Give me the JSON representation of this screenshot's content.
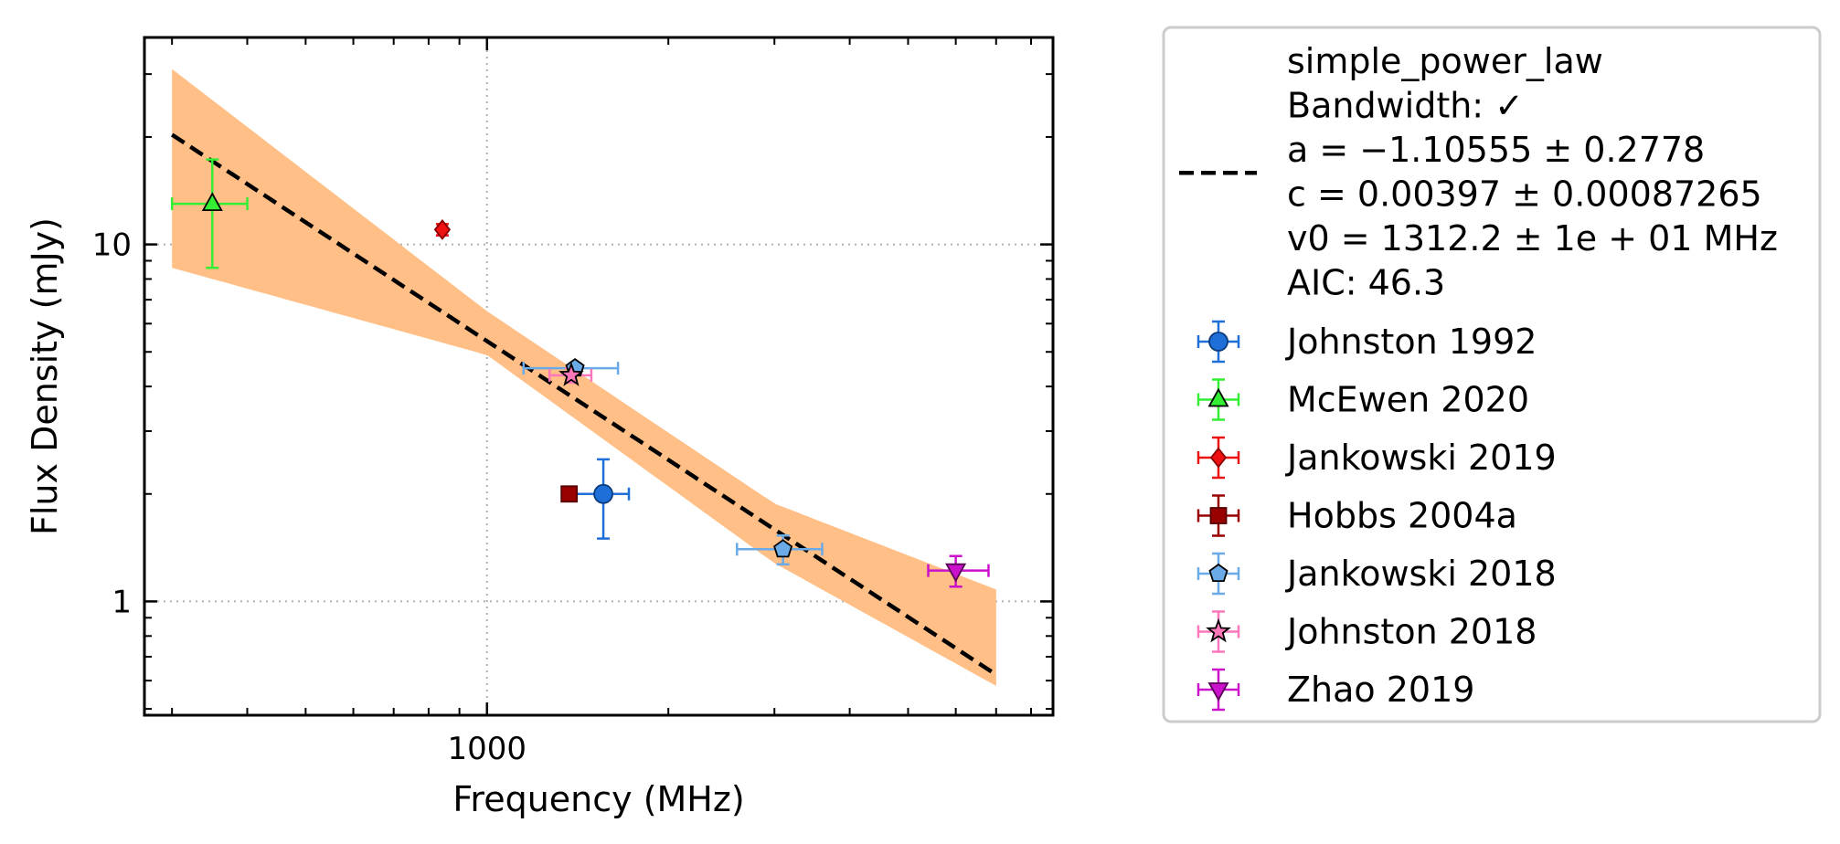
{
  "chart_data": {
    "type": "scatter",
    "xlabel": "Frequency (MHz)",
    "ylabel": "Flux Density (mJy)",
    "xscale": "log",
    "yscale": "log",
    "xlim": [
      270,
      8700
    ],
    "ylim": [
      0.48,
      38
    ],
    "x_major_ticks": [
      {
        "value": 1000,
        "label": "1000"
      }
    ],
    "y_major_ticks": [
      {
        "value": 1,
        "label": "1"
      },
      {
        "value": 10,
        "label": "10"
      }
    ],
    "grid": "major, dotted",
    "legend_position": "outside-right",
    "fit": {
      "name": "simple_power_law",
      "lines": [
        "simple_power_law",
        "Bandwidth: ✓",
        "a = −1.10555 ± 0.2778",
        "c = 0.00397 ± 0.00087265",
        "v0 = 1312.2 ± 1e + 01 MHz",
        "AIC: 46.3"
      ],
      "a": -1.10555,
      "c": 0.00397,
      "v0": 1312.2,
      "line_color": "#000000",
      "band_color": "#ffbf86",
      "freq_range": [
        300,
        7000
      ],
      "band": {
        "x": [
          300,
          1000,
          3000,
          7000
        ],
        "upper": [
          31,
          6.5,
          1.88,
          1.08
        ],
        "lower": [
          8.6,
          4.9,
          1.28,
          0.58
        ]
      }
    },
    "series": [
      {
        "name": "Johnston 1992",
        "marker": "circle",
        "color": "#1f6fd8",
        "edge": "#0a3a7a",
        "errcolor": "#1f6fd8",
        "points": [
          {
            "x": 1560,
            "y": 2.0,
            "xlo": 1400,
            "xhi": 1720,
            "ylo": 1.5,
            "yhi": 2.5
          }
        ]
      },
      {
        "name": "McEwen 2020",
        "marker": "triangle-up",
        "color": "#33ee33",
        "edge": "#000000",
        "errcolor": "#33ee33",
        "points": [
          {
            "x": 350,
            "y": 13.0,
            "xlo": 300,
            "xhi": 400,
            "ylo": 8.6,
            "yhi": 17.3
          }
        ]
      },
      {
        "name": "Jankowski 2019",
        "marker": "diamond",
        "color": "#ee1111",
        "edge": "#880000",
        "errcolor": "#ee1111",
        "points": [
          {
            "x": 843,
            "y": 11.0,
            "xlo": 830,
            "xhi": 856,
            "ylo": 10.6,
            "yhi": 11.4
          }
        ]
      },
      {
        "name": "Hobbs 2004a",
        "marker": "square",
        "color": "#990000",
        "edge": "#550000",
        "errcolor": "#990000",
        "points": [
          {
            "x": 1369,
            "y": 2.0,
            "xlo": 1340,
            "xhi": 1400,
            "ylo": 1.92,
            "yhi": 2.08
          }
        ]
      },
      {
        "name": "Jankowski 2018",
        "marker": "pentagon",
        "color": "#6aaae6",
        "edge": "#000000",
        "errcolor": "#6aaae6",
        "points": [
          {
            "x": 1400,
            "y": 4.5,
            "xlo": 1150,
            "xhi": 1650,
            "ylo": 4.35,
            "yhi": 4.65
          },
          {
            "x": 3100,
            "y": 1.4,
            "xlo": 2600,
            "xhi": 3600,
            "ylo": 1.27,
            "yhi": 1.53
          }
        ]
      },
      {
        "name": "Johnston 2018",
        "marker": "star",
        "color": "#ff77bb",
        "edge": "#000000",
        "errcolor": "#ff77bb",
        "points": [
          {
            "x": 1380,
            "y": 4.3,
            "xlo": 1270,
            "xhi": 1490,
            "ylo": 4.1,
            "yhi": 4.5
          }
        ]
      },
      {
        "name": "Zhao 2019",
        "marker": "triangle-down",
        "color": "#cc11cc",
        "edge": "#550055",
        "errcolor": "#cc11cc",
        "points": [
          {
            "x": 6000,
            "y": 1.22,
            "xlo": 5400,
            "xhi": 6800,
            "ylo": 1.1,
            "yhi": 1.34
          }
        ]
      }
    ]
  }
}
